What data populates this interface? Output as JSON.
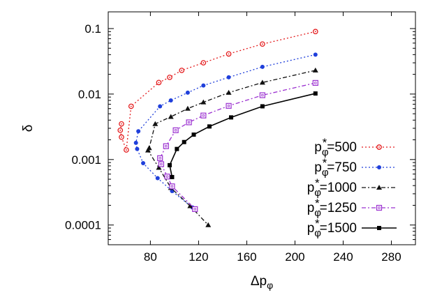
{
  "chart_data": {
    "type": "line",
    "xlabel": "Δp",
    "xlabel_sub": "φ",
    "ylabel": "δ",
    "y_scale": "log",
    "xlim": [
      45,
      300
    ],
    "ylim": [
      5e-05,
      0.18
    ],
    "x_ticks": [
      {
        "value": 80,
        "label": "80"
      },
      {
        "value": 120,
        "label": "120"
      },
      {
        "value": 160,
        "label": "160"
      },
      {
        "value": 200,
        "label": "200"
      },
      {
        "value": 240,
        "label": "240"
      },
      {
        "value": 280,
        "label": "280"
      }
    ],
    "y_ticks": [
      {
        "value": 0.1,
        "label": "0.1"
      },
      {
        "value": 0.01,
        "label": "0.01"
      },
      {
        "value": 0.001,
        "label": "0.001"
      },
      {
        "value": 0.0001,
        "label": "0.0001"
      }
    ],
    "grid": false,
    "legend_position": "bottom-right",
    "series": [
      {
        "name": "500",
        "color": "#e41a1c",
        "marker": "open-circle",
        "line": "dotted",
        "points": [
          [
            217,
            0.09
          ],
          [
            173,
            0.058
          ],
          [
            145,
            0.041
          ],
          [
            124,
            0.03
          ],
          [
            106,
            0.023
          ],
          [
            96,
            0.018
          ],
          [
            87,
            0.015
          ],
          [
            64,
            0.0065
          ],
          [
            60,
            0.0014
          ],
          [
            56,
            0.0022
          ],
          [
            55,
            0.0028
          ],
          [
            56,
            0.0035
          ]
        ]
      },
      {
        "name": "750",
        "color": "#1f3fdb",
        "marker": "filled-circle",
        "line": "dotted",
        "points": [
          [
            217,
            0.04
          ],
          [
            173,
            0.026
          ],
          [
            145,
            0.018
          ],
          [
            124,
            0.0135
          ],
          [
            111,
            0.0105
          ],
          [
            97,
            0.008
          ],
          [
            88,
            0.0065
          ],
          [
            70,
            0.0027
          ],
          [
            68,
            0.0018
          ],
          [
            69,
            0.00145
          ],
          [
            74,
            0.00088
          ],
          [
            86,
            0.00052
          ],
          [
            98,
            0.00033
          ],
          [
            115,
            0.000185
          ]
        ]
      },
      {
        "name": "1000",
        "color": "#111111",
        "marker": "filled-triangle",
        "line": "dash-dot",
        "points": [
          [
            217,
            0.023
          ],
          [
            173,
            0.015
          ],
          [
            145,
            0.0105
          ],
          [
            124,
            0.0075
          ],
          [
            111,
            0.006
          ],
          [
            97,
            0.0045
          ],
          [
            84,
            0.0035
          ],
          [
            79,
            0.0015
          ],
          [
            78,
            0.00138
          ],
          [
            87,
            0.00075
          ],
          [
            97,
            0.00037
          ],
          [
            113,
            0.000195
          ],
          [
            128,
            0.0001
          ]
        ]
      },
      {
        "name": "1250",
        "color": "#9b30d0",
        "marker": "open-square",
        "line": "dash-dot",
        "points": [
          [
            217,
            0.0148
          ],
          [
            173,
            0.0096
          ],
          [
            145,
            0.0066
          ],
          [
            124,
            0.0047
          ],
          [
            112,
            0.0037
          ],
          [
            101,
            0.0028
          ],
          [
            93,
            0.0016
          ],
          [
            88,
            0.00105
          ],
          [
            89,
            0.00085
          ],
          [
            94,
            0.00055
          ],
          [
            98,
            0.00039
          ],
          [
            117,
            0.000175
          ]
        ]
      },
      {
        "name": "1500",
        "color": "#000000",
        "marker": "filled-square",
        "line": "solid",
        "points": [
          [
            217,
            0.0102
          ],
          [
            173,
            0.0065
          ],
          [
            147,
            0.0044
          ],
          [
            129,
            0.0032
          ],
          [
            116,
            0.0024
          ],
          [
            108,
            0.00185
          ],
          [
            102,
            0.00145
          ],
          [
            96,
            0.00082
          ],
          [
            98,
            0.00054
          ]
        ]
      }
    ],
    "legend_prefix": "p",
    "legend_sub": "φ",
    "legend_sup": "*",
    "legend_eq": "="
  }
}
